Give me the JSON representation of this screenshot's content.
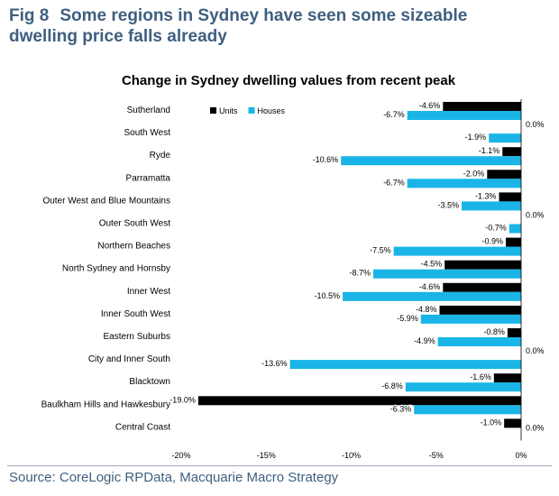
{
  "figure": {
    "number": "Fig 8",
    "title_line1": "Some regions in Sydney have seen some sizeable",
    "title_line2": "dwelling price falls already"
  },
  "source": "Source: CoreLogic RPData, Macquarie Macro Strategy",
  "colors": {
    "units": "#000000",
    "houses": "#1ab5e6",
    "title": "#3f5f7f"
  },
  "chart_data": {
    "type": "bar",
    "orientation": "horizontal",
    "title": "Change in Sydney dwelling values from recent peak",
    "categories": [
      "Sutherland",
      "South West",
      "Ryde",
      "Parramatta",
      "Outer West and Blue Mountains",
      "Outer South West",
      "Northern Beaches",
      "North Sydney and Hornsby",
      "Inner West",
      "Inner South West",
      "Eastern Suburbs",
      "City and Inner South",
      "Blacktown",
      "Baulkham Hills and Hawkesbury",
      "Central Coast"
    ],
    "series": [
      {
        "name": "Units",
        "values": [
          -4.6,
          0.0,
          -1.1,
          -2.0,
          -1.3,
          0.0,
          -0.9,
          -4.5,
          -4.6,
          -4.8,
          -0.8,
          0.0,
          -1.6,
          -19.0,
          -1.0
        ],
        "labels": [
          "-4.6%",
          "0.0%",
          "-1.1%",
          "-2.0%",
          "-1.3%",
          "0.0%",
          "-0.9%",
          "-4.5%",
          "-4.6%",
          "-4.8%",
          "-0.8%",
          "0.0%",
          "-1.6%",
          "-19.0%",
          "-1.0%"
        ]
      },
      {
        "name": "Houses",
        "values": [
          -6.7,
          -1.9,
          -10.6,
          -6.7,
          -3.5,
          -0.7,
          -7.5,
          -8.7,
          -10.5,
          -5.9,
          -4.9,
          -13.6,
          -6.8,
          -6.3,
          0.0
        ],
        "labels": [
          "-6.7%",
          "-1.9%",
          "-10.6%",
          "-6.7%",
          "-3.5%",
          "-0.7%",
          "-7.5%",
          "-8.7%",
          "-10.5%",
          "-5.9%",
          "-4.9%",
          "-13.6%",
          "-6.8%",
          "-6.3%",
          "0.0%"
        ]
      }
    ],
    "x_ticks": [
      -20,
      -15,
      -10,
      -5,
      0
    ],
    "x_tick_labels": [
      "-20%",
      "-15%",
      "-10%",
      "-5%",
      "0%"
    ],
    "xlim": [
      -20,
      0
    ],
    "legend": "top-left",
    "grid": false
  }
}
